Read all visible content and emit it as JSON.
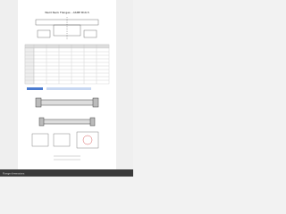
{
  "header": {
    "title": "Weld Neck Flanges - ASME B16.5"
  },
  "footer": {
    "text": "Flange dimensions"
  }
}
